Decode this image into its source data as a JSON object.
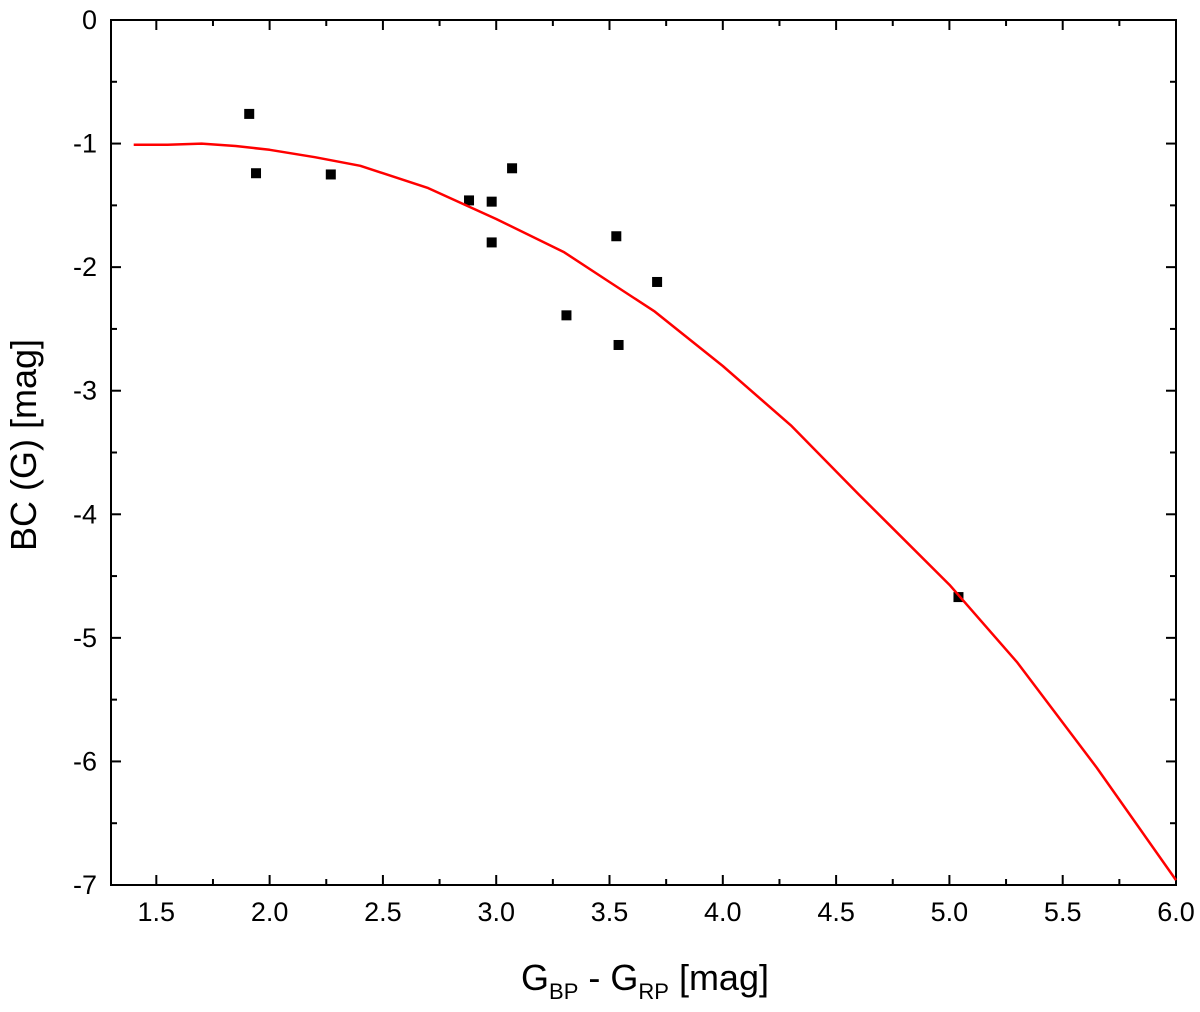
{
  "chart_data": {
    "type": "scatter",
    "xlabel": {
      "main": "G",
      "sub1": "BP",
      "mid": " - G",
      "sub2": "RP",
      "unit": " [mag]"
    },
    "ylabel": "BC (G) [mag]",
    "xlim": [
      1.3,
      6.0
    ],
    "ylim": [
      -7,
      0
    ],
    "x_ticks": [
      {
        "value": 1.5,
        "label": "1.5"
      },
      {
        "value": 2.0,
        "label": "2.0"
      },
      {
        "value": 2.5,
        "label": "2.5"
      },
      {
        "value": 3.0,
        "label": "3.0"
      },
      {
        "value": 3.5,
        "label": "3.5"
      },
      {
        "value": 4.0,
        "label": "4.0"
      },
      {
        "value": 4.5,
        "label": "4.5"
      },
      {
        "value": 5.0,
        "label": "5.0"
      },
      {
        "value": 5.5,
        "label": "5.5"
      },
      {
        "value": 6.0,
        "label": "6.0"
      }
    ],
    "y_ticks": [
      {
        "value": 0,
        "label": "0"
      },
      {
        "value": -1,
        "label": "-1"
      },
      {
        "value": -2,
        "label": "-2"
      },
      {
        "value": -3,
        "label": "-3"
      },
      {
        "value": -4,
        "label": "-4"
      },
      {
        "value": -5,
        "label": "-5"
      },
      {
        "value": -6,
        "label": "-6"
      },
      {
        "value": -7,
        "label": "-7"
      }
    ],
    "grid": false,
    "series": [
      {
        "kind": "scatter",
        "marker": "square",
        "color": "#000000",
        "points": [
          {
            "x": 1.91,
            "y": -0.76
          },
          {
            "x": 1.94,
            "y": -1.24
          },
          {
            "x": 2.27,
            "y": -1.25
          },
          {
            "x": 2.88,
            "y": -1.46
          },
          {
            "x": 2.98,
            "y": -1.47
          },
          {
            "x": 2.98,
            "y": -1.8
          },
          {
            "x": 3.07,
            "y": -1.2
          },
          {
            "x": 3.31,
            "y": -2.39
          },
          {
            "x": 3.53,
            "y": -1.75
          },
          {
            "x": 3.54,
            "y": -2.63
          },
          {
            "x": 3.71,
            "y": -2.12
          },
          {
            "x": 5.04,
            "y": -4.67
          }
        ]
      },
      {
        "kind": "line",
        "color": "#ff0000",
        "points": [
          {
            "x": 1.4,
            "y": -1.01
          },
          {
            "x": 1.55,
            "y": -1.01
          },
          {
            "x": 1.7,
            "y": -1.0
          },
          {
            "x": 1.85,
            "y": -1.02
          },
          {
            "x": 2.0,
            "y": -1.05
          },
          {
            "x": 2.2,
            "y": -1.11
          },
          {
            "x": 2.4,
            "y": -1.18
          },
          {
            "x": 2.7,
            "y": -1.36
          },
          {
            "x": 3.0,
            "y": -1.61
          },
          {
            "x": 3.3,
            "y": -1.88
          },
          {
            "x": 3.5,
            "y": -2.12
          },
          {
            "x": 3.7,
            "y": -2.36
          },
          {
            "x": 4.0,
            "y": -2.8
          },
          {
            "x": 4.3,
            "y": -3.28
          },
          {
            "x": 4.6,
            "y": -3.84
          },
          {
            "x": 5.0,
            "y": -4.57
          },
          {
            "x": 5.3,
            "y": -5.2
          },
          {
            "x": 5.65,
            "y": -6.05
          },
          {
            "x": 6.0,
            "y": -6.96
          }
        ]
      }
    ]
  }
}
